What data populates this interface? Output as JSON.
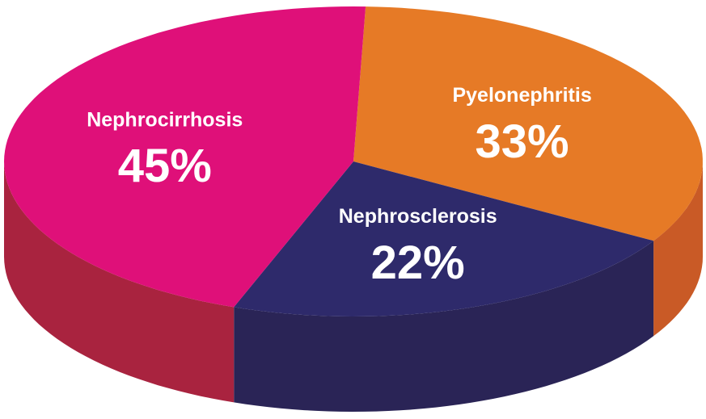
{
  "chart_data": {
    "type": "pie",
    "categories": [
      "Pyelonephritis",
      "Nephrosclerosis",
      "Nephrocirrhosis"
    ],
    "values": [
      33,
      22,
      45
    ],
    "value_labels": [
      "33%",
      "22%",
      "45%"
    ],
    "colors": [
      "#e67a26",
      "#2e2a6b",
      "#df1079"
    ],
    "side_colors": [
      "#c95a26",
      "#2a2456",
      "#a9233f"
    ]
  }
}
